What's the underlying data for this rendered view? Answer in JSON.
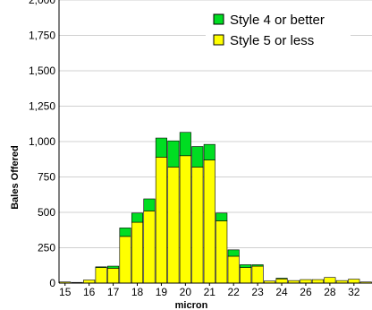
{
  "chart_data": {
    "type": "bar",
    "stacked": true,
    "title": "",
    "xlabel": "micron",
    "ylabel": "Bales Offered",
    "ylim": [
      0,
      2000
    ],
    "yticks": [
      0,
      250,
      500,
      750,
      1000,
      1250,
      1500,
      1750,
      2000
    ],
    "ytick_labels": [
      "0",
      "250",
      "500",
      "750",
      "1,000",
      "1,250",
      "1,500",
      "1,750",
      "2,000"
    ],
    "xtick_labels": [
      "15",
      "16",
      "17",
      "18",
      "19",
      "20",
      "21",
      "22",
      "23",
      "24",
      "26",
      "28",
      "32"
    ],
    "grid": true,
    "legend_position": "top-right",
    "categories": [
      "15",
      "15.5",
      "16",
      "16.5",
      "17",
      "17.5",
      "18",
      "18.5",
      "19",
      "19.5",
      "20",
      "20.5",
      "21",
      "21.5",
      "22",
      "22.5",
      "23",
      "23.5",
      "24",
      "25",
      "26",
      "27",
      "28",
      "30",
      "32",
      "32+"
    ],
    "series": [
      {
        "name": "Style 5 or less",
        "color": "#ffff00",
        "values": [
          8,
          5,
          22,
          110,
          105,
          330,
          430,
          510,
          890,
          820,
          900,
          820,
          870,
          440,
          190,
          110,
          120,
          15,
          30,
          18,
          25,
          25,
          40,
          18,
          28,
          8
        ]
      },
      {
        "name": "Style 4 or better",
        "color": "#00dd22",
        "values": [
          0,
          0,
          0,
          5,
          15,
          60,
          65,
          85,
          135,
          185,
          165,
          145,
          110,
          55,
          45,
          20,
          10,
          0,
          5,
          0,
          0,
          0,
          0,
          0,
          0,
          0
        ]
      }
    ]
  }
}
